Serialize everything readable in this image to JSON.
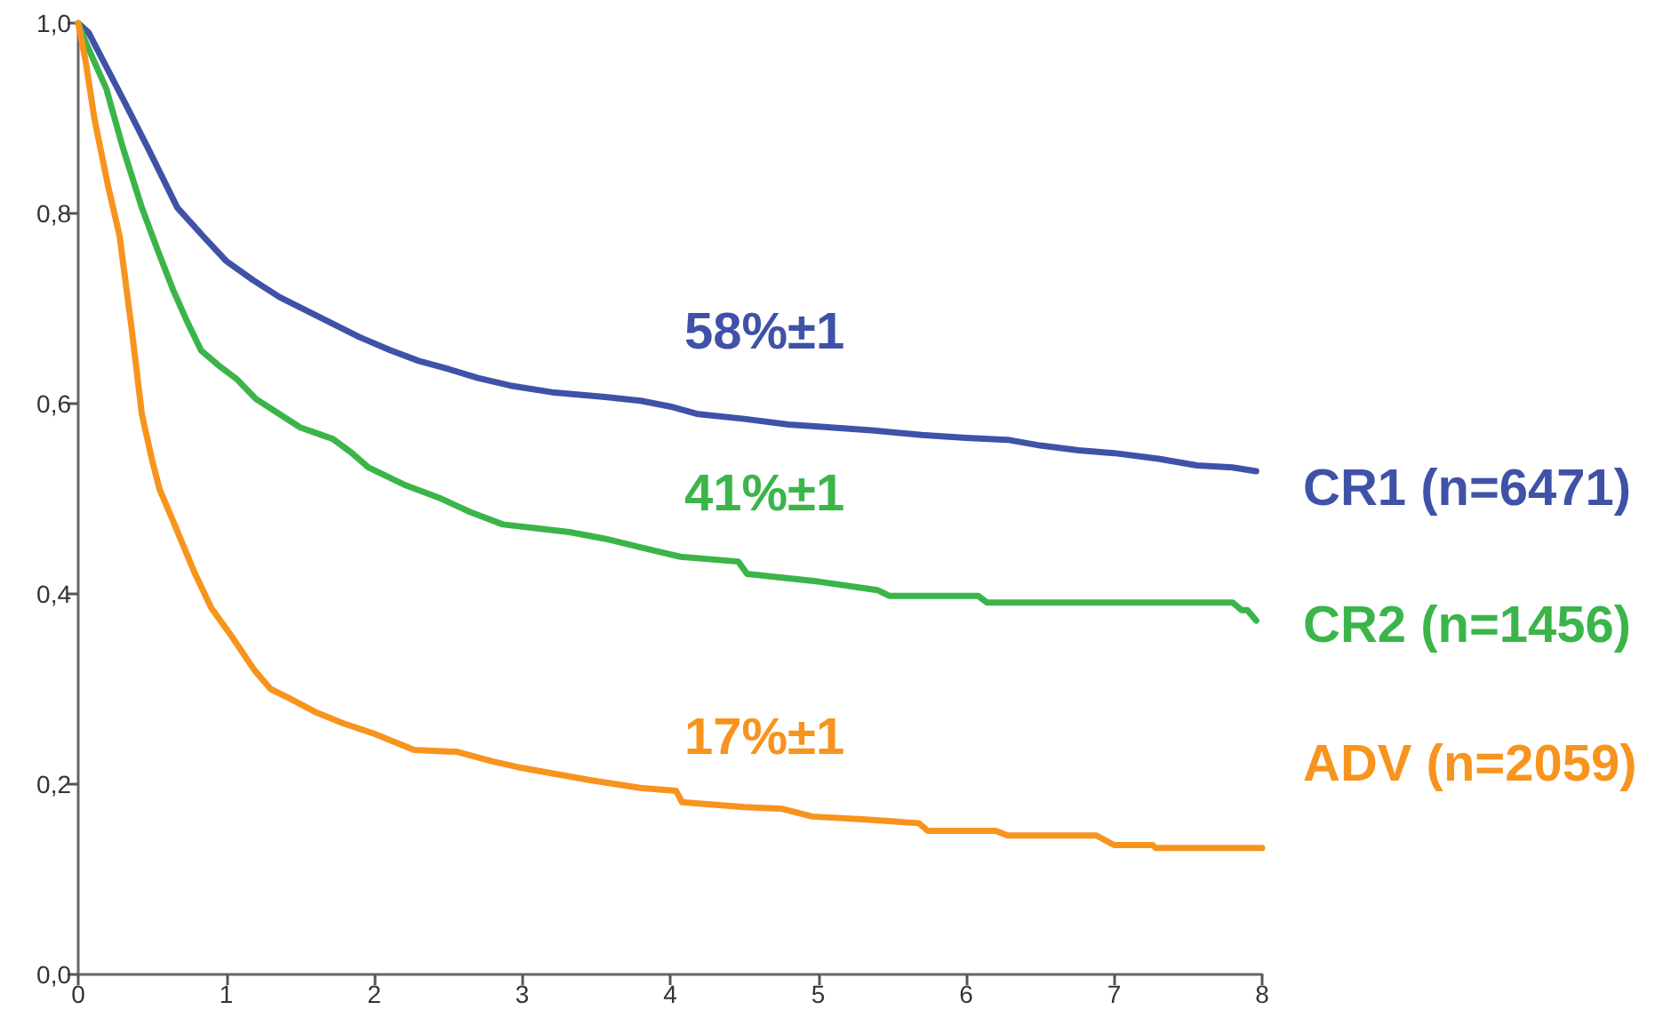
{
  "chart_data": {
    "type": "line",
    "marker": "none",
    "xlim": [
      0,
      8
    ],
    "xticks": [
      0,
      1,
      2,
      3,
      4,
      5,
      6,
      7,
      8
    ],
    "ylim": [
      0,
      1
    ],
    "yticks": [
      {
        "value": 0,
        "label": "0,0"
      },
      {
        "value": 0.2,
        "label": "0,2"
      },
      {
        "value": 0.4,
        "label": "0,4"
      },
      {
        "value": 0.6,
        "label": "0,6"
      },
      {
        "value": 0.8,
        "label": "0,8"
      },
      {
        "value": 1,
        "label": "1,0"
      }
    ],
    "series": [
      {
        "name": "CR1 (n=6471)",
        "color": "#3f52a8",
        "x": [
          0,
          0.07,
          0.31,
          0.47,
          0.67,
          0.85,
          1.0,
          1.18,
          1.36,
          1.54,
          1.72,
          1.9,
          2.11,
          2.3,
          2.51,
          2.7,
          2.92,
          3.2,
          3.56,
          3.8,
          4.0,
          4.19,
          4.5,
          4.8,
          5.0,
          5.36,
          5.7,
          6.0,
          6.28,
          6.5,
          6.76,
          7.0,
          7.3,
          7.56,
          7.8,
          7.96
        ],
        "values": [
          1,
          0.99,
          0.918,
          0.869,
          0.806,
          0.775,
          0.75,
          0.73,
          0.712,
          0.698,
          0.684,
          0.67,
          0.656,
          0.645,
          0.636,
          0.627,
          0.619,
          0.612,
          0.607,
          0.603,
          0.597,
          0.589,
          0.584,
          0.578,
          0.576,
          0.572,
          0.567,
          0.564,
          0.562,
          0.556,
          0.551,
          0.548,
          0.542,
          0.535,
          0.533,
          0.529
        ]
      },
      {
        "name": "CR2 (n=1456)",
        "color": "#3bb54a",
        "x": [
          0,
          0.05,
          0.19,
          0.3,
          0.43,
          0.54,
          0.64,
          0.74,
          0.83,
          0.95,
          1.07,
          1.2,
          1.36,
          1.5,
          1.72,
          1.85,
          1.96,
          2.2,
          2.44,
          2.65,
          2.87,
          3.1,
          3.32,
          3.56,
          3.8,
          4.07,
          4.46,
          4.52,
          5.0,
          5.4,
          5.48,
          6.08,
          6.14,
          7.8,
          7.86,
          7.9,
          7.96
        ],
        "values": [
          1,
          0.98,
          0.931,
          0.87,
          0.806,
          0.76,
          0.72,
          0.685,
          0.656,
          0.64,
          0.626,
          0.605,
          0.589,
          0.575,
          0.563,
          0.548,
          0.533,
          0.515,
          0.501,
          0.486,
          0.473,
          0.469,
          0.465,
          0.458,
          0.449,
          0.439,
          0.434,
          0.421,
          0.413,
          0.404,
          0.398,
          0.398,
          0.391,
          0.391,
          0.383,
          0.383,
          0.372
        ]
      },
      {
        "name": "ADV (n=2059)",
        "color": "#f7941e",
        "x": [
          0,
          0.05,
          0.11,
          0.2,
          0.28,
          0.36,
          0.43,
          0.5,
          0.55,
          0.64,
          0.79,
          0.9,
          1.03,
          1.19,
          1.3,
          1.43,
          1.6,
          1.79,
          2.0,
          2.27,
          2.56,
          2.8,
          3.0,
          3.25,
          3.47,
          3.8,
          4.04,
          4.08,
          4.5,
          4.76,
          4.96,
          5.3,
          5.68,
          5.74,
          6.2,
          6.28,
          6.88,
          7.0,
          7.26,
          7.28,
          8.0
        ],
        "values": [
          1,
          0.96,
          0.899,
          0.83,
          0.776,
          0.68,
          0.589,
          0.54,
          0.51,
          0.477,
          0.421,
          0.385,
          0.357,
          0.32,
          0.3,
          0.29,
          0.276,
          0.264,
          0.253,
          0.236,
          0.234,
          0.224,
          0.217,
          0.21,
          0.204,
          0.196,
          0.193,
          0.181,
          0.176,
          0.174,
          0.166,
          0.163,
          0.159,
          0.151,
          0.151,
          0.146,
          0.146,
          0.136,
          0.136,
          0.133,
          0.133
        ]
      }
    ],
    "annotations": [
      "58%±1",
      "41%±1",
      "17%±1"
    ]
  }
}
